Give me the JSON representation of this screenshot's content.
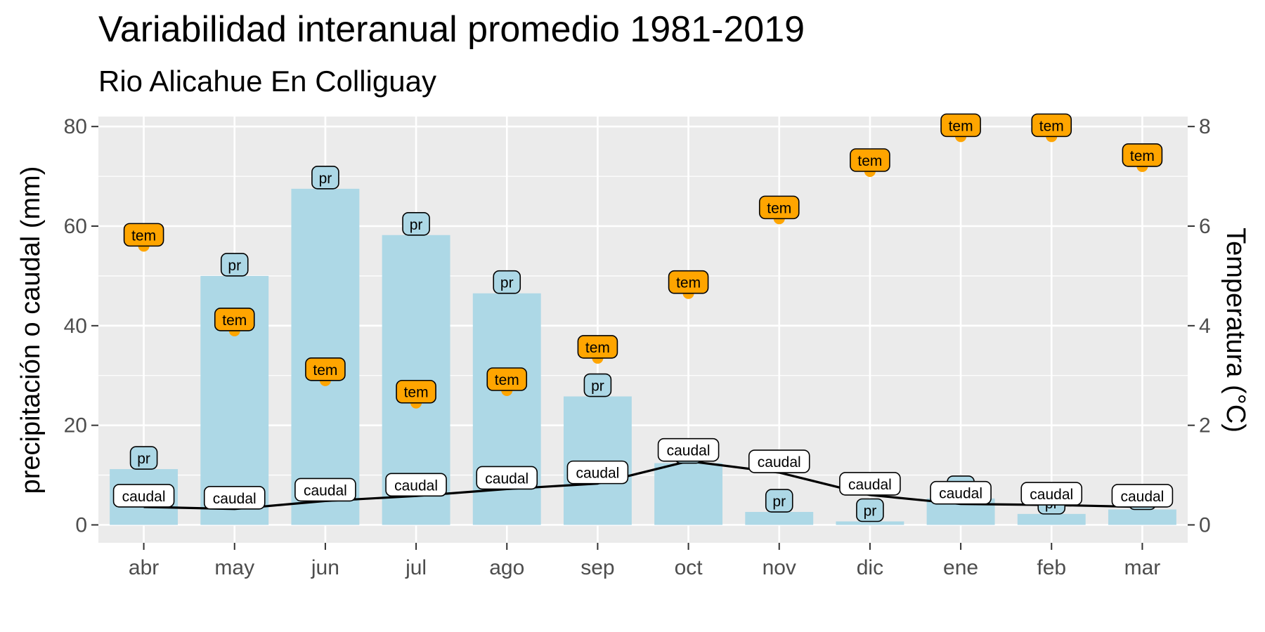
{
  "colors": {
    "panel": "#ebebeb",
    "grid": "#ffffff",
    "precip_bar": "#add8e6",
    "temperature": "#ffa500",
    "flow_line": "#000000",
    "flow_label": "#ffffff",
    "tick_text": "#4d4d4d"
  },
  "chart_data": {
    "type": "bar",
    "title": "Variabilidad interanual promedio 1981-2019",
    "subtitle": "Rio Alicahue En Colliguay",
    "ylabel": "precipitación o caudal (mm)",
    "ylabel_right": "Temperatura (°C)",
    "categories": [
      "abr",
      "may",
      "jun",
      "jul",
      "ago",
      "sep",
      "oct",
      "nov",
      "dic",
      "ene",
      "feb",
      "mar"
    ],
    "ylim": [
      -3.6,
      82
    ],
    "yticks": [
      0,
      20,
      40,
      60,
      80
    ],
    "ylim_right": [
      -0.36,
      8.2
    ],
    "yticks_right": [
      0,
      2,
      4,
      6,
      8
    ],
    "grid": true,
    "series": [
      {
        "key": "pr",
        "kind": "bar",
        "axis": "left",
        "label": "pr",
        "values": [
          11.2,
          50.0,
          67.5,
          58.2,
          46.5,
          25.8,
          12.4,
          2.6,
          0.7,
          5.3,
          2.2,
          3.1
        ]
      },
      {
        "key": "tem",
        "kind": "points",
        "axis": "right",
        "label": "tem",
        "values": [
          5.6,
          3.9,
          2.9,
          2.45,
          2.7,
          3.35,
          4.65,
          6.15,
          7.1,
          7.8,
          7.8,
          7.2
        ]
      },
      {
        "key": "caudal",
        "kind": "line",
        "axis": "left",
        "label": "caudal",
        "values": [
          3.6,
          3.2,
          4.8,
          5.8,
          7.2,
          8.3,
          12.8,
          10.5,
          6.0,
          4.2,
          4.0,
          3.6
        ]
      }
    ]
  }
}
